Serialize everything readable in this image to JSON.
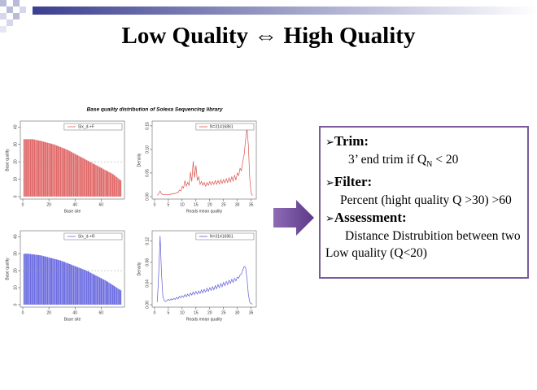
{
  "title": "Low Quality ⇔ High Quality",
  "figure_title": "Base quality distribution of Solexa Sequencing library",
  "panel": {
    "items": [
      {
        "heading": "Trim:",
        "text": "3’ end trim if Q",
        "subscript": "N",
        "text_after": "< 20"
      },
      {
        "heading": "Filter:",
        "text": "Percent (hight quality Q >30) >60"
      },
      {
        "heading": "Assessment:",
        "text": "Distance Distrubition between two Low quality (Q<20)"
      }
    ]
  },
  "chart_data": [
    {
      "type": "bar",
      "xlabel": "Base site",
      "ylabel": "Base quality",
      "x": [
        1,
        2,
        3,
        4,
        5,
        6,
        7,
        8,
        9,
        10,
        11,
        12,
        13,
        14,
        15,
        16,
        17,
        18,
        19,
        20,
        21,
        22,
        23,
        24,
        25,
        26,
        27,
        28,
        29,
        30,
        31,
        32,
        33,
        34,
        35,
        36,
        37,
        38,
        39,
        40,
        41,
        42,
        43,
        44,
        45,
        46,
        47,
        48,
        49,
        50,
        51,
        52,
        53,
        54,
        55,
        56,
        57,
        58,
        59,
        60,
        61,
        62,
        63,
        64,
        65,
        66,
        67,
        68,
        69,
        70,
        71,
        72,
        73,
        74,
        75
      ],
      "series": [
        {
          "name": "Slx_d-+F",
          "color": "#e06666",
          "values": [
            33,
            33,
            33,
            33,
            33,
            33,
            33,
            33,
            32.8,
            32.6,
            32.5,
            32.3,
            32.2,
            32,
            31.8,
            31.6,
            31.4,
            31.2,
            31,
            30.8,
            30.6,
            30.4,
            30.2,
            30,
            29.7,
            29.4,
            29.1,
            28.8,
            28.5,
            28.2,
            27.9,
            27.6,
            27.3,
            27,
            26.6,
            26.2,
            25.8,
            25.4,
            25,
            24.6,
            24.2,
            23.8,
            23.4,
            23,
            22.6,
            22.2,
            21.8,
            21.4,
            21,
            20.6,
            20.2,
            19.8,
            19.4,
            19,
            18.6,
            18.2,
            17.8,
            17.4,
            17,
            16.6,
            16.2,
            15.8,
            15.4,
            15,
            14.6,
            14.2,
            13.8,
            13.4,
            13,
            12.4,
            11.8,
            11.2,
            10.6,
            10,
            9.4
          ]
        }
      ],
      "reference_line": 20,
      "xlim": [
        0,
        76
      ],
      "ylim": [
        0,
        42
      ],
      "xticks": [
        0,
        20,
        40,
        60
      ],
      "yticks": [
        0,
        10,
        20,
        30,
        40
      ]
    },
    {
      "type": "line",
      "xlabel": "Reads mean quality",
      "ylabel": "Density",
      "x": [
        1,
        1.5,
        2,
        2.5,
        3,
        3.5,
        4,
        4.5,
        5,
        5.5,
        6,
        6.5,
        7,
        7.5,
        8,
        8.5,
        9,
        9.5,
        10,
        10.5,
        11,
        11.5,
        12,
        12.5,
        13,
        13.5,
        14,
        14.5,
        15,
        15.5,
        16,
        16.5,
        17,
        17.5,
        18,
        18.5,
        19,
        19.5,
        20,
        20.5,
        21,
        21.5,
        22,
        22.5,
        23,
        23.5,
        24,
        24.5,
        25,
        25.5,
        26,
        26.5,
        27,
        27.5,
        28,
        28.5,
        29,
        29.5,
        30,
        30.5,
        31,
        31.5,
        32,
        32.5,
        33,
        33.5,
        34,
        34.5,
        35,
        35.5
      ],
      "series": [
        {
          "name": "N=31416861",
          "color": "#d9534f",
          "values": [
            0.003,
            0.006,
            0.012,
            0.006,
            0.004,
            0.004,
            0.005,
            0.004,
            0.005,
            0.004,
            0.006,
            0.005,
            0.007,
            0.006,
            0.009,
            0.008,
            0.014,
            0.012,
            0.022,
            0.018,
            0.034,
            0.022,
            0.03,
            0.024,
            0.052,
            0.032,
            0.075,
            0.04,
            0.066,
            0.034,
            0.042,
            0.026,
            0.032,
            0.024,
            0.03,
            0.022,
            0.03,
            0.024,
            0.032,
            0.025,
            0.032,
            0.026,
            0.034,
            0.026,
            0.034,
            0.027,
            0.036,
            0.028,
            0.036,
            0.029,
            0.038,
            0.03,
            0.04,
            0.031,
            0.042,
            0.033,
            0.046,
            0.035,
            0.05,
            0.045,
            0.06,
            0.055,
            0.075,
            0.09,
            0.12,
            0.145,
            0.11,
            0.04,
            0.008,
            0.002
          ]
        }
      ],
      "xlim": [
        0,
        36
      ],
      "ylim": [
        0,
        0.155
      ],
      "xticks": [
        0,
        5,
        10,
        15,
        20,
        25,
        30,
        35
      ],
      "yticks": [
        {
          "value": 0,
          "label": "0.00"
        },
        {
          "value": 0.05,
          "label": "0.05"
        },
        {
          "value": 0.1,
          "label": "0.10"
        },
        {
          "value": 0.15,
          "label": "0.15"
        }
      ]
    },
    {
      "type": "bar",
      "xlabel": "Base site",
      "ylabel": "Base quality",
      "x": [
        1,
        2,
        3,
        4,
        5,
        6,
        7,
        8,
        9,
        10,
        11,
        12,
        13,
        14,
        15,
        16,
        17,
        18,
        19,
        20,
        21,
        22,
        23,
        24,
        25,
        26,
        27,
        28,
        29,
        30,
        31,
        32,
        33,
        34,
        35,
        36,
        37,
        38,
        39,
        40,
        41,
        42,
        43,
        44,
        45,
        46,
        47,
        48,
        49,
        50,
        51,
        52,
        53,
        54,
        55,
        56,
        57,
        58,
        59,
        60,
        61,
        62,
        63,
        64,
        65,
        66,
        67,
        68,
        69,
        70,
        71,
        72,
        73,
        74,
        75
      ],
      "series": [
        {
          "name": "Slx_d-+R",
          "color": "#6a6ae0",
          "values": [
            30,
            30,
            30,
            30,
            29.9,
            29.8,
            29.7,
            29.6,
            29.5,
            29.4,
            29.3,
            29.2,
            29.1,
            29,
            28.8,
            28.6,
            28.4,
            28.2,
            28,
            27.8,
            27.6,
            27.4,
            27.2,
            27,
            26.8,
            26.6,
            26.4,
            26.2,
            26,
            25.7,
            25.4,
            25.1,
            24.8,
            24.5,
            24.2,
            23.9,
            23.6,
            23.3,
            23,
            22.7,
            22.4,
            22.1,
            21.8,
            21.5,
            21.2,
            20.9,
            20.6,
            20.3,
            20,
            19.6,
            19.2,
            18.8,
            18.4,
            18,
            17.6,
            17.2,
            16.8,
            16.4,
            16,
            15.6,
            15.2,
            14.8,
            14.4,
            14,
            13.5,
            13,
            12.5,
            12,
            11.5,
            11,
            10.5,
            10,
            9.5,
            9,
            8.5
          ]
        }
      ],
      "reference_line": 20,
      "xlim": [
        0,
        76
      ],
      "ylim": [
        0,
        42
      ],
      "xticks": [
        0,
        20,
        40,
        60
      ],
      "yticks": [
        0,
        10,
        20,
        30,
        40
      ]
    },
    {
      "type": "line",
      "xlabel": "Reads mean quality",
      "ylabel": "Density",
      "x": [
        1,
        1.5,
        2,
        2.5,
        3,
        3.5,
        4,
        4.5,
        5,
        5.5,
        6,
        6.5,
        7,
        7.5,
        8,
        8.5,
        9,
        9.5,
        10,
        10.5,
        11,
        11.5,
        12,
        12.5,
        13,
        13.5,
        14,
        14.5,
        15,
        15.5,
        16,
        16.5,
        17,
        17.5,
        18,
        18.5,
        19,
        19.5,
        20,
        20.5,
        21,
        21.5,
        22,
        22.5,
        23,
        23.5,
        24,
        24.5,
        25,
        25.5,
        26,
        26.5,
        27,
        27.5,
        28,
        28.5,
        29,
        29.5,
        30,
        30.5,
        31,
        31.5,
        32,
        32.5,
        33,
        33.5,
        34,
        34.5,
        35,
        35.5
      ],
      "series": [
        {
          "name": "N=31416861",
          "color": "#5b5bd6",
          "values": [
            0.005,
            0.06,
            0.13,
            0.06,
            0.015,
            0.008,
            0.006,
            0.008,
            0.01,
            0.008,
            0.011,
            0.009,
            0.012,
            0.01,
            0.014,
            0.011,
            0.016,
            0.013,
            0.017,
            0.014,
            0.019,
            0.015,
            0.02,
            0.016,
            0.022,
            0.018,
            0.024,
            0.019,
            0.025,
            0.02,
            0.026,
            0.021,
            0.028,
            0.022,
            0.029,
            0.024,
            0.031,
            0.025,
            0.032,
            0.027,
            0.034,
            0.028,
            0.036,
            0.03,
            0.038,
            0.032,
            0.04,
            0.034,
            0.042,
            0.036,
            0.044,
            0.038,
            0.046,
            0.04,
            0.048,
            0.042,
            0.05,
            0.045,
            0.052,
            0.05,
            0.056,
            0.058,
            0.066,
            0.072,
            0.07,
            0.05,
            0.02,
            0.005,
            0.002,
            0.001
          ]
        }
      ],
      "xlim": [
        0,
        36
      ],
      "ylim": [
        0,
        0.135
      ],
      "xticks": [
        0,
        5,
        10,
        15,
        20,
        25,
        30,
        35
      ],
      "yticks": [
        {
          "value": 0,
          "label": "0.00"
        },
        {
          "value": 0.04,
          "label": "0.04"
        },
        {
          "value": 0.08,
          "label": "0.08"
        },
        {
          "value": 0.12,
          "label": "0.12"
        }
      ]
    }
  ]
}
